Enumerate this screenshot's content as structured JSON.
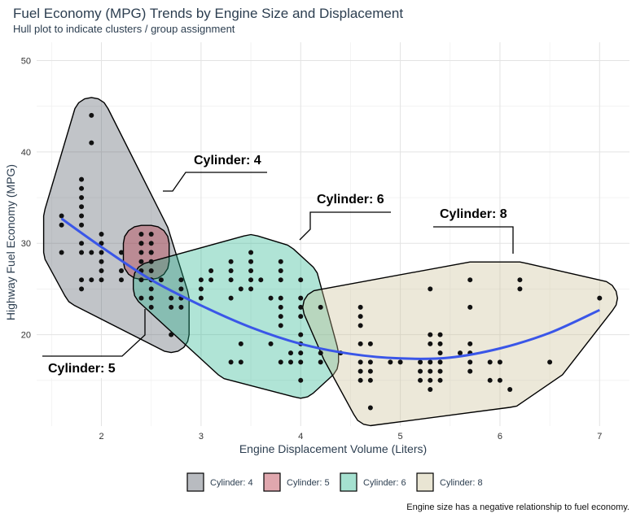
{
  "chart_data": {
    "type": "scatter",
    "title": "Fuel Economy (MPG) Trends by Engine Size and Displacement",
    "subtitle": "Hull plot to indicate clusters / group assignment",
    "xlabel": "Engine Displacement Volume (Liters)",
    "ylabel": "Highway Fuel Economy (MPG)",
    "caption": "Engine size has a negative relationship to fuel economy.",
    "xlim": [
      1.35,
      7.3
    ],
    "ylim": [
      10.0,
      52.0
    ],
    "xticks": [
      2,
      3,
      4,
      5,
      6,
      7
    ],
    "yticks": [
      20,
      30,
      40,
      50
    ],
    "grid": true,
    "legend_position": "bottom",
    "series": [
      {
        "name": "Cylinder: 4",
        "color": "#4d5561",
        "points": [
          [
            1.6,
            33
          ],
          [
            1.6,
            32
          ],
          [
            1.6,
            29
          ],
          [
            1.8,
            37
          ],
          [
            1.8,
            36
          ],
          [
            1.8,
            35
          ],
          [
            1.8,
            34
          ],
          [
            1.8,
            33
          ],
          [
            1.8,
            32
          ],
          [
            1.8,
            30
          ],
          [
            1.8,
            29
          ],
          [
            1.8,
            26
          ],
          [
            1.8,
            25
          ],
          [
            1.9,
            44
          ],
          [
            1.9,
            41
          ],
          [
            1.9,
            29
          ],
          [
            1.9,
            26
          ],
          [
            2.0,
            31
          ],
          [
            2.0,
            30
          ],
          [
            2.0,
            29
          ],
          [
            2.0,
            28
          ],
          [
            2.0,
            27
          ],
          [
            2.0,
            26
          ],
          [
            2.2,
            29
          ],
          [
            2.2,
            27
          ],
          [
            2.2,
            26
          ],
          [
            2.4,
            31
          ],
          [
            2.4,
            30
          ],
          [
            2.4,
            27
          ],
          [
            2.4,
            26
          ],
          [
            2.4,
            24
          ],
          [
            2.5,
            31
          ],
          [
            2.5,
            29
          ],
          [
            2.5,
            27
          ],
          [
            2.5,
            26
          ],
          [
            2.5,
            24
          ],
          [
            2.5,
            23
          ],
          [
            2.7,
            20
          ],
          [
            2.7,
            24
          ],
          [
            2.7,
            23
          ]
        ]
      },
      {
        "name": "Cylinder: 5",
        "color": "#b22234",
        "points": [
          [
            2.4,
            30
          ],
          [
            2.4,
            29
          ],
          [
            2.4,
            28
          ],
          [
            2.5,
            30
          ],
          [
            2.5,
            29
          ],
          [
            2.5,
            28
          ]
        ]
      },
      {
        "name": "Cylinder: 6",
        "color": "#1db38a",
        "points": [
          [
            2.5,
            26
          ],
          [
            2.5,
            25
          ],
          [
            2.6,
            26
          ],
          [
            2.8,
            26
          ],
          [
            2.8,
            25
          ],
          [
            2.8,
            24
          ],
          [
            2.8,
            23
          ],
          [
            3.0,
            26
          ],
          [
            3.0,
            25
          ],
          [
            3.0,
            24
          ],
          [
            3.1,
            26
          ],
          [
            3.1,
            27
          ],
          [
            3.3,
            28
          ],
          [
            3.3,
            27
          ],
          [
            3.3,
            26
          ],
          [
            3.3,
            24
          ],
          [
            3.3,
            17
          ],
          [
            3.4,
            25
          ],
          [
            3.4,
            19
          ],
          [
            3.4,
            17
          ],
          [
            3.5,
            29
          ],
          [
            3.5,
            28
          ],
          [
            3.5,
            27
          ],
          [
            3.5,
            26
          ],
          [
            3.5,
            25
          ],
          [
            3.6,
            26
          ],
          [
            3.7,
            24
          ],
          [
            3.7,
            19
          ],
          [
            3.8,
            28
          ],
          [
            3.8,
            27
          ],
          [
            3.8,
            26
          ],
          [
            3.8,
            24
          ],
          [
            3.8,
            23
          ],
          [
            3.8,
            22
          ],
          [
            3.8,
            21
          ],
          [
            3.8,
            17
          ],
          [
            3.9,
            18
          ],
          [
            3.9,
            17
          ],
          [
            4.0,
            26
          ],
          [
            4.0,
            24
          ],
          [
            4.0,
            23
          ],
          [
            4.0,
            22
          ],
          [
            4.0,
            20
          ],
          [
            4.0,
            19
          ],
          [
            4.0,
            18
          ],
          [
            4.0,
            17
          ],
          [
            4.0,
            15
          ],
          [
            4.2,
            18
          ],
          [
            4.2,
            17
          ]
        ]
      },
      {
        "name": "Cylinder: 8",
        "color": "#c9be91",
        "points": [
          [
            4.2,
            23
          ],
          [
            4.4,
            18
          ],
          [
            4.6,
            23
          ],
          [
            4.6,
            22
          ],
          [
            4.6,
            21
          ],
          [
            4.6,
            19
          ],
          [
            4.6,
            17
          ],
          [
            4.6,
            16
          ],
          [
            4.6,
            15
          ],
          [
            4.7,
            19
          ],
          [
            4.7,
            17
          ],
          [
            4.7,
            16
          ],
          [
            4.7,
            15
          ],
          [
            4.7,
            12
          ],
          [
            4.9,
            17
          ],
          [
            5.0,
            17
          ],
          [
            5.2,
            17
          ],
          [
            5.2,
            16
          ],
          [
            5.2,
            15
          ],
          [
            5.3,
            25
          ],
          [
            5.3,
            20
          ],
          [
            5.3,
            19
          ],
          [
            5.3,
            17
          ],
          [
            5.3,
            16
          ],
          [
            5.3,
            15
          ],
          [
            5.3,
            14
          ],
          [
            5.4,
            20
          ],
          [
            5.4,
            19
          ],
          [
            5.4,
            18
          ],
          [
            5.4,
            17
          ],
          [
            5.4,
            16
          ],
          [
            5.4,
            15
          ],
          [
            5.6,
            18
          ],
          [
            5.7,
            26
          ],
          [
            5.7,
            23
          ],
          [
            5.7,
            19
          ],
          [
            5.7,
            18
          ],
          [
            5.7,
            17
          ],
          [
            5.7,
            16
          ],
          [
            5.9,
            15
          ],
          [
            5.9,
            17
          ],
          [
            6.0,
            17
          ],
          [
            6.0,
            15
          ],
          [
            6.1,
            14
          ],
          [
            6.2,
            26
          ],
          [
            6.2,
            25
          ],
          [
            6.5,
            17
          ],
          [
            7.0,
            24
          ]
        ]
      }
    ],
    "annotations": [
      "Cylinder: 4",
      "Cylinder: 5",
      "Cylinder: 6",
      "Cylinder: 8"
    ],
    "trend": {
      "method": "smooth",
      "color": "#3a56e8",
      "x": [
        1.6,
        2.0,
        2.5,
        3.0,
        3.5,
        4.0,
        4.5,
        5.0,
        5.5,
        6.0,
        6.5,
        7.0
      ],
      "y": [
        32.7,
        29.6,
        26.0,
        23.2,
        20.8,
        19.0,
        17.9,
        17.4,
        17.5,
        18.5,
        20.2,
        22.7
      ]
    }
  }
}
